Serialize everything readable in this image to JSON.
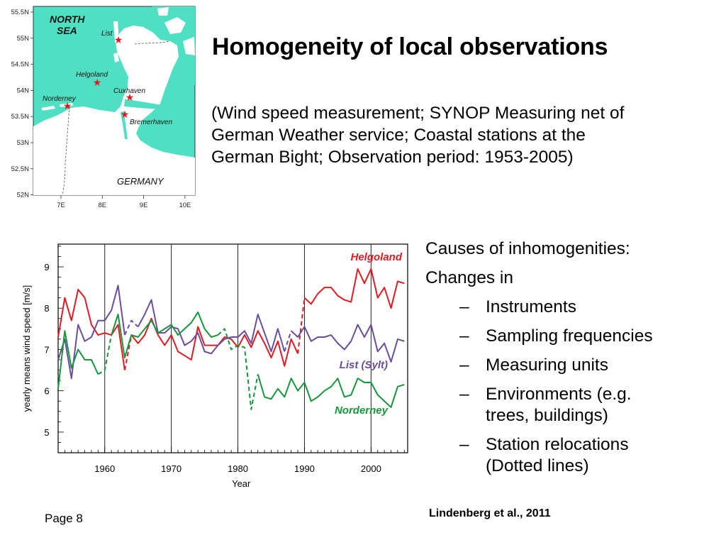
{
  "slide": {
    "title": "Homogeneity of local observations",
    "subtitle_lines": [
      "(Wind speed measurement; SYNOP Measuring net of",
      "German Weather service; Coastal stations at the",
      "German Bight; Observation period: 1953-2005)"
    ],
    "causes_heading": "Causes of inhomogenities:",
    "changes_in": "Changes in",
    "causes_items": [
      "Instruments",
      "Sampling frequencies",
      "Measuring units",
      "Environments (e.g.\ntrees, buildings)",
      "Station relocations\n(Dotted lines)"
    ],
    "dash_glyph": "–",
    "page_number": "Page 8",
    "citation": "Lindenberg et al., 2011"
  },
  "map": {
    "lat_labels": [
      "55.5N",
      "55N",
      "54.5N",
      "54N",
      "53.5N",
      "53N",
      "52.5N",
      "52N"
    ],
    "lon_labels": [
      "7E",
      "8E",
      "9E",
      "10E"
    ],
    "sea_label_lines": [
      "NORTH",
      "SEA"
    ],
    "country_label": "GERMANY",
    "stations": [
      "List",
      "Helgoland",
      "Norderney",
      "Cuxhaven",
      "Bremerhaven"
    ],
    "sea_color": "#4fe0c4",
    "land_color": "#ffffff",
    "station_color": "#e8141c"
  },
  "chart_data": {
    "type": "line",
    "xlabel": "Year",
    "ylabel": "yearly means wind speed [m/s]",
    "xlim": [
      1953,
      2005.5
    ],
    "ylim": [
      4.5,
      9.55
    ],
    "xticks": [
      1960,
      1970,
      1980,
      1990,
      2000
    ],
    "yticks": [
      5,
      6,
      7,
      8,
      9
    ],
    "vertical_lines": [
      1960,
      1970,
      1980,
      1990,
      2000
    ],
    "grid": false,
    "legend": "inline labels near series (top-right, middle-right, lower-right)",
    "series": [
      {
        "name": "Helgoland",
        "color": "#e21b22",
        "dashed_segments": [
          [
            1963,
            1964
          ],
          [
            1989,
            1990
          ]
        ],
        "x": [
          1953,
          1954,
          1955,
          1956,
          1957,
          1958,
          1959,
          1960,
          1961,
          1962,
          1963,
          1964,
          1965,
          1966,
          1967,
          1968,
          1969,
          1970,
          1971,
          1972,
          1973,
          1974,
          1975,
          1976,
          1977,
          1978,
          1979,
          1980,
          1981,
          1982,
          1983,
          1984,
          1985,
          1986,
          1987,
          1988,
          1989,
          1990,
          1991,
          1992,
          1993,
          1994,
          1995,
          1996,
          1997,
          1998,
          1999,
          2000,
          2001,
          2002,
          2003,
          2004,
          2005
        ],
        "y": [
          7.3,
          8.25,
          7.7,
          8.45,
          8.25,
          7.6,
          7.35,
          7.4,
          7.35,
          7.6,
          6.5,
          7.35,
          7.15,
          7.35,
          7.75,
          7.35,
          7.1,
          7.35,
          6.95,
          6.85,
          6.75,
          7.55,
          7.1,
          7.1,
          7.1,
          7.3,
          7.25,
          7.05,
          7.35,
          7.05,
          7.45,
          7.15,
          6.8,
          7.2,
          6.6,
          7.25,
          6.9,
          8.25,
          8.1,
          8.35,
          8.5,
          8.5,
          8.3,
          8.2,
          8.15,
          8.95,
          8.6,
          8.95,
          8.25,
          8.5,
          8.0,
          8.65,
          8.6
        ]
      },
      {
        "name": "List (Sylt)",
        "color": "#6a4e9c",
        "dashed_segments": [
          [
            1963,
            1965
          ],
          [
            1987,
            1988
          ]
        ],
        "x": [
          1953,
          1954,
          1955,
          1956,
          1957,
          1958,
          1959,
          1960,
          1961,
          1962,
          1963,
          1964,
          1965,
          1966,
          1967,
          1968,
          1969,
          1970,
          1971,
          1972,
          1973,
          1974,
          1975,
          1976,
          1977,
          1978,
          1979,
          1980,
          1981,
          1982,
          1983,
          1984,
          1985,
          1986,
          1987,
          1988,
          1989,
          1990,
          1991,
          1992,
          1993,
          1994,
          1995,
          1996,
          1997,
          1998,
          1999,
          2000,
          2001,
          2002,
          2003,
          2004,
          2005
        ],
        "y": [
          6.75,
          7.25,
          6.3,
          7.6,
          7.2,
          7.3,
          7.7,
          7.7,
          7.95,
          8.55,
          7.35,
          7.7,
          7.55,
          7.85,
          8.2,
          7.4,
          7.4,
          7.55,
          7.5,
          7.1,
          7.2,
          7.4,
          6.95,
          6.9,
          7.1,
          7.25,
          7.3,
          7.3,
          7.45,
          7.15,
          7.85,
          7.4,
          6.95,
          7.5,
          6.95,
          7.45,
          7.3,
          7.55,
          7.2,
          7.3,
          7.3,
          7.35,
          7.15,
          7.0,
          7.2,
          7.6,
          7.3,
          7.6,
          6.95,
          7.15,
          6.7,
          7.25,
          7.2
        ]
      },
      {
        "name": "Norderney",
        "color": "#16963c",
        "dashed_segments": [
          [
            1959,
            1961
          ],
          [
            1977,
            1983
          ]
        ],
        "x": [
          1953,
          1954,
          1955,
          1956,
          1957,
          1958,
          1959,
          1960,
          1961,
          1962,
          1963,
          1964,
          1965,
          1966,
          1967,
          1968,
          1969,
          1970,
          1971,
          1972,
          1973,
          1974,
          1975,
          1976,
          1977,
          1978,
          1979,
          1980,
          1981,
          1982,
          1983,
          1984,
          1985,
          1986,
          1987,
          1988,
          1989,
          1990,
          1991,
          1992,
          1993,
          1994,
          1995,
          1996,
          1997,
          1998,
          1999,
          2000,
          2001,
          2002,
          2003,
          2004,
          2005
        ],
        "y": [
          6.05,
          7.45,
          6.55,
          7.0,
          6.75,
          6.75,
          6.4,
          6.5,
          7.35,
          7.85,
          6.8,
          7.35,
          7.3,
          7.5,
          7.7,
          7.4,
          7.5,
          7.6,
          7.35,
          7.5,
          7.65,
          7.9,
          7.5,
          7.3,
          7.35,
          7.5,
          7.0,
          7.1,
          7.05,
          5.55,
          6.4,
          5.85,
          5.8,
          6.05,
          5.85,
          6.3,
          6.0,
          6.2,
          5.75,
          5.85,
          6.0,
          6.1,
          6.3,
          5.85,
          5.9,
          6.3,
          6.2,
          6.2,
          5.9,
          5.75,
          5.6,
          6.1,
          6.15
        ]
      }
    ]
  }
}
